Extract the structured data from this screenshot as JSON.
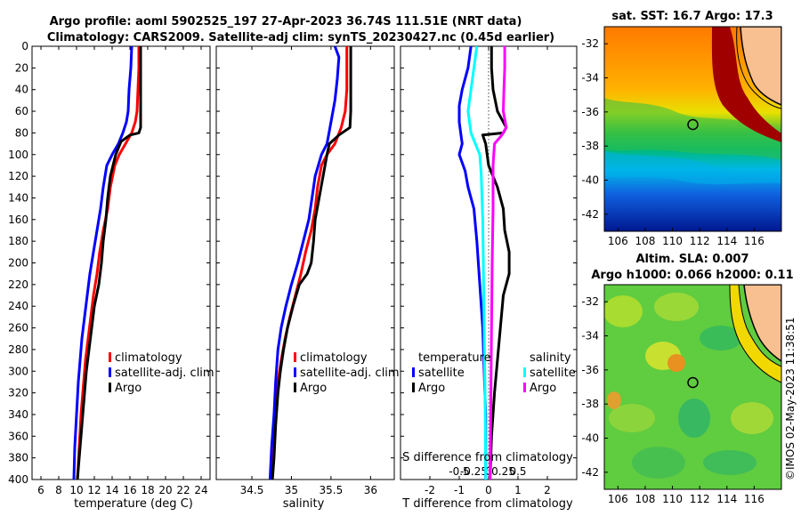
{
  "header": {
    "title_line1": "Argo profile: aoml 5902525_197 27-Apr-2023 36.74S 111.51E (NRT data)",
    "title_line2": "Climatology: CARS2009. Satellite-adj clim: synTS_20230427.nc (0.45d earlier)"
  },
  "colors": {
    "climatology": "#ff0000",
    "satellite": "#0000ff",
    "argo": "#000000",
    "salinity_satellite": "#00ffff",
    "salinity_argo": "#ff00ff"
  },
  "depth_ticks": [
    "0",
    "20",
    "40",
    "60",
    "80",
    "100",
    "120",
    "140",
    "160",
    "180",
    "200",
    "220",
    "240",
    "260",
    "280",
    "300",
    "320",
    "340",
    "360",
    "380",
    "400"
  ],
  "chart_data": [
    {
      "type": "line",
      "id": "temperature",
      "xlabel": "temperature (deg C)",
      "ylabel": "",
      "xlim": [
        5,
        25
      ],
      "ylim": [
        400,
        0
      ],
      "x_ticks": [
        "6",
        "8",
        "10",
        "12",
        "14",
        "16",
        "18",
        "20",
        "22",
        "24"
      ],
      "legend": [
        "climatology",
        "satellite-adj. clim",
        "Argo"
      ],
      "series": [
        {
          "name": "climatology",
          "color": "#ff0000",
          "points": [
            [
              17.0,
              0
            ],
            [
              17.0,
              20
            ],
            [
              16.9,
              40
            ],
            [
              16.8,
              60
            ],
            [
              16.6,
              70
            ],
            [
              16.2,
              80
            ],
            [
              15.5,
              90
            ],
            [
              14.8,
              100
            ],
            [
              14.3,
              110
            ],
            [
              13.8,
              130
            ],
            [
              13.5,
              150
            ],
            [
              13.0,
              170
            ],
            [
              12.6,
              190
            ],
            [
              12.3,
              210
            ],
            [
              11.9,
              230
            ],
            [
              11.6,
              250
            ],
            [
              11.3,
              270
            ],
            [
              11.0,
              290
            ],
            [
              10.8,
              310
            ],
            [
              10.5,
              340
            ],
            [
              10.3,
              370
            ],
            [
              10.1,
              400
            ]
          ]
        },
        {
          "name": "satellite-adj. clim",
          "color": "#0000ff",
          "points": [
            [
              16.2,
              0
            ],
            [
              16.1,
              20
            ],
            [
              15.9,
              40
            ],
            [
              15.8,
              60
            ],
            [
              15.6,
              70
            ],
            [
              15.2,
              80
            ],
            [
              14.7,
              90
            ],
            [
              14.0,
              100
            ],
            [
              13.4,
              110
            ],
            [
              13.0,
              130
            ],
            [
              12.7,
              150
            ],
            [
              12.3,
              170
            ],
            [
              11.9,
              190
            ],
            [
              11.5,
              210
            ],
            [
              11.2,
              230
            ],
            [
              10.9,
              250
            ],
            [
              10.6,
              270
            ],
            [
              10.4,
              290
            ],
            [
              10.2,
              310
            ],
            [
              10.0,
              340
            ],
            [
              9.8,
              370
            ],
            [
              9.7,
              400
            ]
          ]
        },
        {
          "name": "Argo",
          "color": "#000000",
          "points": [
            [
              17.2,
              0
            ],
            [
              17.2,
              20
            ],
            [
              17.2,
              40
            ],
            [
              17.2,
              60
            ],
            [
              17.2,
              75
            ],
            [
              17.0,
              80
            ],
            [
              16.0,
              82
            ],
            [
              15.0,
              88
            ],
            [
              14.4,
              100
            ],
            [
              13.8,
              120
            ],
            [
              13.5,
              140
            ],
            [
              13.3,
              160
            ],
            [
              13.0,
              180
            ],
            [
              12.8,
              200
            ],
            [
              12.5,
              220
            ],
            [
              12.0,
              240
            ],
            [
              11.7,
              260
            ],
            [
              11.4,
              280
            ],
            [
              11.1,
              300
            ],
            [
              10.8,
              330
            ],
            [
              10.5,
              360
            ],
            [
              10.3,
              380
            ],
            [
              10.1,
              400
            ]
          ]
        }
      ]
    },
    {
      "type": "line",
      "id": "salinity",
      "xlabel": "salinity",
      "ylabel": "",
      "xlim": [
        34.05,
        36.3
      ],
      "ylim": [
        400,
        0
      ],
      "x_ticks": [
        "34.5",
        "35",
        "35.5",
        "36"
      ],
      "legend": [
        "climatology",
        "satellite-adj. clim",
        "Argo"
      ],
      "series": [
        {
          "name": "climatology",
          "color": "#ff0000",
          "points": [
            [
              35.7,
              0
            ],
            [
              35.7,
              20
            ],
            [
              35.7,
              40
            ],
            [
              35.68,
              60
            ],
            [
              35.63,
              75
            ],
            [
              35.55,
              90
            ],
            [
              35.45,
              100
            ],
            [
              35.38,
              110
            ],
            [
              35.33,
              130
            ],
            [
              35.3,
              150
            ],
            [
              35.25,
              170
            ],
            [
              35.18,
              190
            ],
            [
              35.12,
              210
            ],
            [
              35.05,
              230
            ],
            [
              34.98,
              250
            ],
            [
              34.92,
              270
            ],
            [
              34.87,
              290
            ],
            [
              34.83,
              310
            ],
            [
              34.8,
              340
            ],
            [
              34.77,
              370
            ],
            [
              34.75,
              400
            ]
          ]
        },
        {
          "name": "satellite-adj. clim",
          "color": "#0000ff",
          "points": [
            [
              35.55,
              0
            ],
            [
              35.6,
              10
            ],
            [
              35.58,
              30
            ],
            [
              35.55,
              50
            ],
            [
              35.5,
              70
            ],
            [
              35.45,
              90
            ],
            [
              35.38,
              100
            ],
            [
              35.3,
              120
            ],
            [
              35.26,
              140
            ],
            [
              35.22,
              160
            ],
            [
              35.15,
              180
            ],
            [
              35.08,
              200
            ],
            [
              35.0,
              220
            ],
            [
              34.93,
              240
            ],
            [
              34.87,
              260
            ],
            [
              34.83,
              280
            ],
            [
              34.8,
              310
            ],
            [
              34.78,
              340
            ],
            [
              34.75,
              370
            ],
            [
              34.73,
              400
            ]
          ]
        },
        {
          "name": "Argo",
          "color": "#000000",
          "points": [
            [
              35.75,
              0
            ],
            [
              35.75,
              20
            ],
            [
              35.75,
              40
            ],
            [
              35.75,
              60
            ],
            [
              35.74,
              75
            ],
            [
              35.6,
              82
            ],
            [
              35.48,
              90
            ],
            [
              35.45,
              100
            ],
            [
              35.4,
              120
            ],
            [
              35.35,
              140
            ],
            [
              35.3,
              160
            ],
            [
              35.28,
              180
            ],
            [
              35.25,
              200
            ],
            [
              35.2,
              210
            ],
            [
              35.1,
              220
            ],
            [
              35.02,
              240
            ],
            [
              34.95,
              260
            ],
            [
              34.9,
              280
            ],
            [
              34.86,
              300
            ],
            [
              34.83,
              320
            ],
            [
              34.8,
              350
            ],
            [
              34.78,
              380
            ],
            [
              34.76,
              400
            ]
          ]
        }
      ]
    },
    {
      "type": "line",
      "id": "difference",
      "xlabel": "T difference from climatology",
      "x2label": "S difference from climatology",
      "xlim": [
        -3,
        3
      ],
      "ylim": [
        400,
        0
      ],
      "x_ticks": [
        "-2",
        "-1",
        "0",
        "1",
        "2"
      ],
      "x2_ticks": [
        "-0.5",
        "-0.25",
        "0",
        "0.25",
        "0.5"
      ],
      "legend_groups": [
        {
          "heading": "temperature",
          "entries": [
            "satellite",
            "Argo"
          ]
        },
        {
          "heading": "salinity",
          "entries": [
            "satellite",
            "Argo"
          ]
        }
      ],
      "series": [
        {
          "name": "temperature satellite",
          "color": "#0000ff",
          "points": [
            [
              -0.6,
              0
            ],
            [
              -0.7,
              20
            ],
            [
              -0.9,
              40
            ],
            [
              -1.0,
              55
            ],
            [
              -1.0,
              70
            ],
            [
              -0.9,
              90
            ],
            [
              -1.0,
              100
            ],
            [
              -0.8,
              115
            ],
            [
              -0.7,
              130
            ],
            [
              -0.5,
              150
            ],
            [
              -0.4,
              180
            ],
            [
              -0.3,
              220
            ],
            [
              -0.2,
              260
            ],
            [
              -0.15,
              300
            ],
            [
              -0.1,
              340
            ],
            [
              -0.1,
              400
            ]
          ]
        },
        {
          "name": "temperature Argo",
          "color": "#000000",
          "points": [
            [
              0.1,
              0
            ],
            [
              0.1,
              20
            ],
            [
              0.15,
              40
            ],
            [
              0.3,
              60
            ],
            [
              0.6,
              75
            ],
            [
              0.5,
              80
            ],
            [
              -0.2,
              82
            ],
            [
              -0.1,
              90
            ],
            [
              0.0,
              110
            ],
            [
              0.3,
              130
            ],
            [
              0.5,
              150
            ],
            [
              0.55,
              170
            ],
            [
              0.7,
              190
            ],
            [
              0.7,
              210
            ],
            [
              0.5,
              230
            ],
            [
              0.4,
              260
            ],
            [
              0.3,
              290
            ],
            [
              0.2,
              320
            ],
            [
              0.1,
              360
            ],
            [
              0.05,
              400
            ]
          ]
        },
        {
          "name": "salinity satellite",
          "color": "#00ffff",
          "points": [
            [
              -0.4,
              0
            ],
            [
              -0.5,
              20
            ],
            [
              -0.6,
              40
            ],
            [
              -0.7,
              60
            ],
            [
              -0.6,
              80
            ],
            [
              -0.3,
              100
            ],
            [
              -0.25,
              120
            ],
            [
              -0.2,
              160
            ],
            [
              -0.18,
              200
            ],
            [
              -0.15,
              260
            ],
            [
              -0.12,
              320
            ],
            [
              -0.1,
              400
            ]
          ]
        },
        {
          "name": "salinity Argo",
          "color": "#ff00ff",
          "points": [
            [
              0.55,
              0
            ],
            [
              0.55,
              20
            ],
            [
              0.52,
              40
            ],
            [
              0.5,
              60
            ],
            [
              0.6,
              75
            ],
            [
              0.45,
              82
            ],
            [
              0.2,
              90
            ],
            [
              0.15,
              110
            ],
            [
              0.15,
              150
            ],
            [
              0.12,
              200
            ],
            [
              0.1,
              260
            ],
            [
              0.08,
              320
            ],
            [
              0.05,
              400
            ]
          ]
        }
      ]
    },
    {
      "type": "heatmap",
      "id": "sst-map",
      "title": "sat. SST: 16.7 Argo: 17.3",
      "x_ticks": [
        "106",
        "108",
        "110",
        "112",
        "114",
        "116"
      ],
      "y_ticks": [
        "-32",
        "-34",
        "-36",
        "-38",
        "-40",
        "-42"
      ],
      "xlim": [
        105,
        118
      ],
      "ylim": [
        -43,
        -31
      ],
      "float_position": [
        111.5,
        -36.74
      ]
    },
    {
      "type": "heatmap",
      "id": "sla-map",
      "title_line1": "Altim. SLA: 0.007",
      "title_line2": "Argo h1000: 0.066 h2000: 0.11",
      "x_ticks": [
        "106",
        "108",
        "110",
        "112",
        "114",
        "116"
      ],
      "y_ticks": [
        "-32",
        "-34",
        "-36",
        "-38",
        "-40",
        "-42"
      ],
      "xlim": [
        105,
        118
      ],
      "ylim": [
        -43,
        -31
      ],
      "float_position": [
        111.5,
        -36.74
      ]
    }
  ],
  "watermark": "©IMOS 02-May-2023 11:38:51"
}
